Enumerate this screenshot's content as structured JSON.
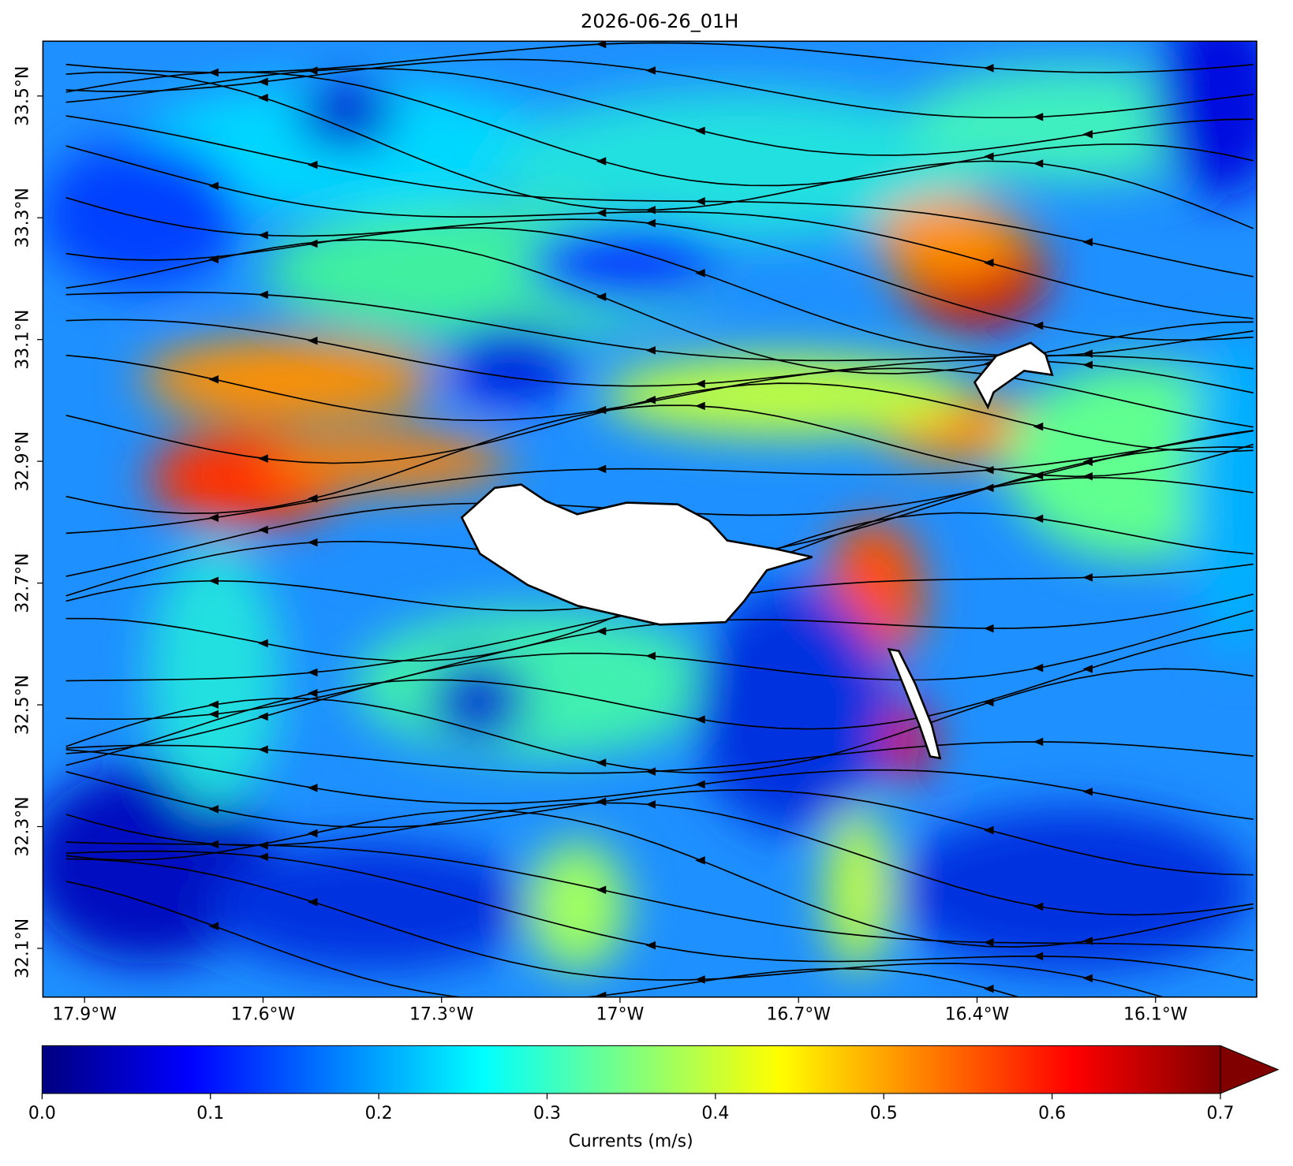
{
  "chart_data": {
    "type": "map",
    "title": "2026-06-26_01H",
    "xlim": [
      -17.97,
      -15.93
    ],
    "ylim": [
      32.02,
      33.59
    ],
    "xticks": [
      {
        "value": -17.9,
        "label": "17.9°W"
      },
      {
        "value": -17.6,
        "label": "17.6°W"
      },
      {
        "value": -17.3,
        "label": "17.3°W"
      },
      {
        "value": -17.0,
        "label": "17°W"
      },
      {
        "value": -16.7,
        "label": "16.7°W"
      },
      {
        "value": -16.4,
        "label": "16.4°W"
      },
      {
        "value": -16.1,
        "label": "16.1°W"
      }
    ],
    "yticks": [
      {
        "value": 33.5,
        "label": "33.5°N"
      },
      {
        "value": 33.3,
        "label": "33.3°N"
      },
      {
        "value": 33.1,
        "label": "33.1°N"
      },
      {
        "value": 32.9,
        "label": "32.9°N"
      },
      {
        "value": 32.7,
        "label": "32.7°N"
      },
      {
        "value": 32.5,
        "label": "32.5°N"
      },
      {
        "value": 32.3,
        "label": "32.3°N"
      },
      {
        "value": 32.1,
        "label": "32.1°N"
      }
    ],
    "colorbar": {
      "label": "Currents (m/s)",
      "colormap": "jet",
      "extend": "max",
      "lim": [
        0,
        0.7
      ],
      "ticks": [
        {
          "value": 0,
          "label": "0.0"
        },
        0.1,
        0.2,
        0.3,
        0.4,
        0.5,
        0.6,
        0.7
      ]
    }
  }
}
